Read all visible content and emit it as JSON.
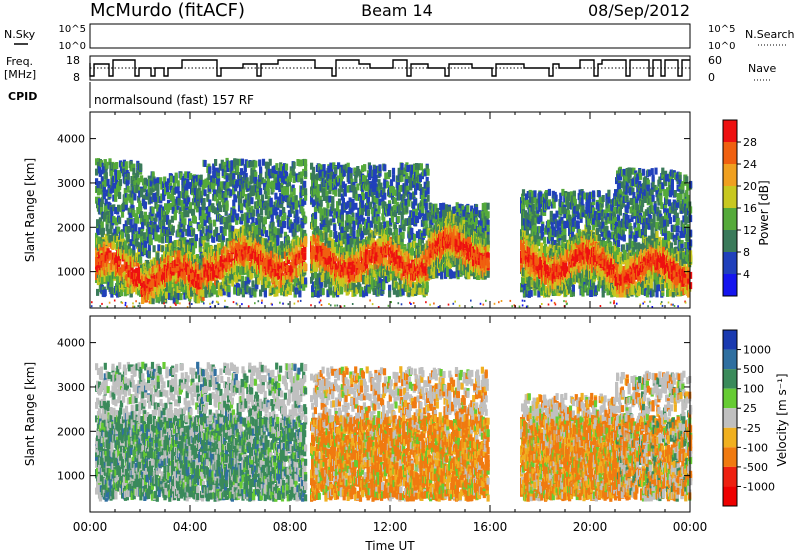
{
  "header": {
    "station": "McMurdo (fitACF)",
    "beam": "Beam 14",
    "date": "08/Sep/2012"
  },
  "noise_panel": {
    "left_label": "N.Sky",
    "right_label": "N.Search",
    "ticks_left": [
      "10^5",
      "10^0"
    ],
    "ticks_right": [
      "10^5",
      "10^0"
    ]
  },
  "freq_panel": {
    "left_label_line1": "Freq.",
    "left_label_line2": "[MHz]",
    "right_label": "Nave",
    "ticks_left": [
      "18",
      "8"
    ],
    "ticks_right": [
      "60",
      "0"
    ]
  },
  "cpid": {
    "label": "CPID",
    "text": "normalsound (fast) 157 RF"
  },
  "chart_data": [
    {
      "type": "heatmap",
      "title": "",
      "xlabel": "Time UT",
      "ylabel": "Slant Range [km]",
      "xlim_hours": [
        0,
        24
      ],
      "ylim_km": [
        180,
        4600
      ],
      "x_ticks": [
        "00:00",
        "04:00",
        "08:00",
        "12:00",
        "16:00",
        "20:00",
        "00:00"
      ],
      "y_ticks": [
        1000,
        2000,
        3000,
        4000
      ],
      "colorbar": {
        "label": "Power [dB]",
        "ticks": [
          "4",
          "8",
          "12",
          "16",
          "20",
          "24",
          "28"
        ],
        "colors": [
          "#1515ee",
          "#2040bb",
          "#3a7a5a",
          "#55aa3a",
          "#c8c820",
          "#f0a020",
          "#f06010",
          "#ee1010"
        ]
      },
      "regions": [
        {
          "t0": 0.2,
          "t1": 2.0,
          "r0": 500,
          "r1": 3500,
          "core": [
            700,
            1500
          ]
        },
        {
          "t0": 2.0,
          "t1": 4.5,
          "r0": 350,
          "r1": 3200,
          "core": [
            500,
            1300
          ]
        },
        {
          "t0": 4.5,
          "t1": 8.6,
          "r0": 500,
          "r1": 3500,
          "core": [
            800,
            1700
          ]
        },
        {
          "t0": 8.8,
          "t1": 13.5,
          "r0": 500,
          "r1": 3400,
          "core": [
            600,
            1900
          ]
        },
        {
          "t0": 13.5,
          "t1": 15.9,
          "r0": 900,
          "r1": 2500,
          "core": [
            1000,
            2000
          ]
        },
        {
          "t0": 17.2,
          "t1": 21.0,
          "r0": 500,
          "r1": 2800,
          "core": [
            600,
            1800
          ]
        },
        {
          "t0": 21.0,
          "t1": 24.0,
          "r0": 500,
          "r1": 3300,
          "core": [
            600,
            1500
          ]
        }
      ]
    },
    {
      "type": "heatmap",
      "title": "",
      "xlabel": "Time UT",
      "ylabel": "Slant Range [km]",
      "xlim_hours": [
        0,
        24
      ],
      "ylim_km": [
        180,
        4600
      ],
      "x_ticks": [
        "00:00",
        "04:00",
        "08:00",
        "12:00",
        "16:00",
        "20:00",
        "00:00"
      ],
      "y_ticks": [
        1000,
        2000,
        3000,
        4000
      ],
      "colorbar": {
        "label": "Velocity [m s⁻¹]",
        "ticks": [
          "1000",
          "500",
          "100",
          "25",
          "-25",
          "-100",
          "-500",
          "-1000"
        ],
        "colors": [
          "#1a3ab0",
          "#2f6fa0",
          "#3a8a5a",
          "#66cc33",
          "#c0c0c0",
          "#f0b020",
          "#f07a10",
          "#ee2010",
          "#ee0000"
        ]
      },
      "regions": [
        {
          "t0": 0.2,
          "t1": 8.6,
          "r0": 500,
          "r1": 3500,
          "dominant": "toward"
        },
        {
          "t0": 8.8,
          "t1": 15.9,
          "r0": 500,
          "r1": 3400,
          "dominant": "away"
        },
        {
          "t0": 17.2,
          "t1": 21.0,
          "r0": 500,
          "r1": 2800,
          "dominant": "away"
        },
        {
          "t0": 21.0,
          "t1": 24.0,
          "r0": 500,
          "r1": 3300,
          "dominant": "mixed"
        }
      ]
    }
  ]
}
